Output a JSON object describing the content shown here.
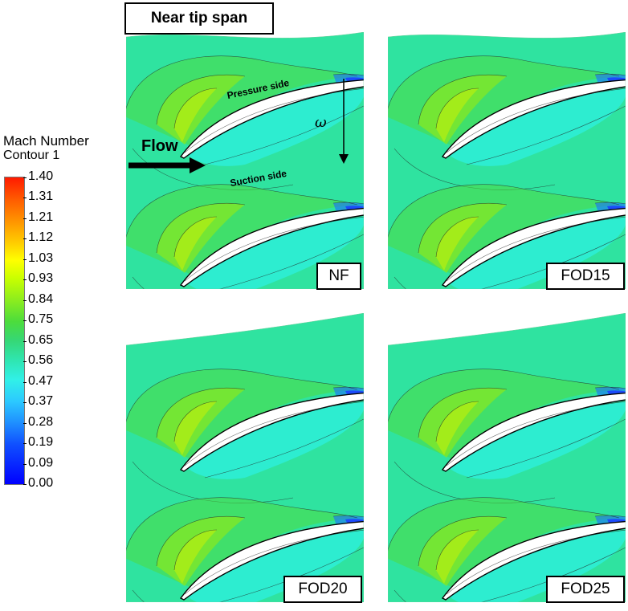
{
  "title": "Near tip span",
  "legend": {
    "title": "Mach Number",
    "subtitle": "Contour 1",
    "ticks": [
      "1.40",
      "1.31",
      "1.21",
      "1.12",
      "1.03",
      "0.93",
      "0.84",
      "0.75",
      "0.65",
      "0.56",
      "0.47",
      "0.37",
      "0.28",
      "0.19",
      "0.09",
      "0.00"
    ]
  },
  "annotations": {
    "pressure_side": "Pressure side",
    "suction_side": "Suction side",
    "flow": "Flow",
    "rotation": "ω"
  },
  "panels": [
    {
      "label": "NF"
    },
    {
      "label": "FOD15"
    },
    {
      "label": "FOD20"
    },
    {
      "label": "FOD25"
    }
  ],
  "colors": {
    "background_flow": "#2fe3a0",
    "high_mach": "#7fe52a",
    "low_mach": "#2df0e0",
    "stagnation": "#1b3cff"
  }
}
